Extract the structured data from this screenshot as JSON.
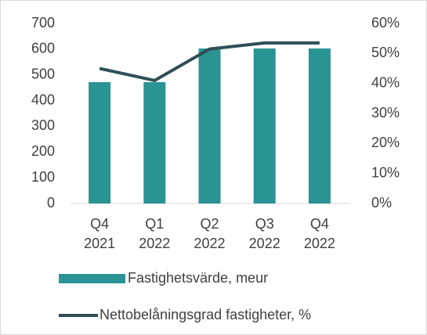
{
  "chart_data": {
    "type": "bar",
    "categories": [
      [
        "Q4",
        "2021"
      ],
      [
        "Q1",
        "2022"
      ],
      [
        "Q2",
        "2022"
      ],
      [
        "Q3",
        "2022"
      ],
      [
        "Q4",
        "2022"
      ]
    ],
    "series": [
      {
        "name": "Fastighetsvärde, meur",
        "type": "bar",
        "color": "#2a9393",
        "values": [
          472,
          472,
          603,
          603,
          603
        ]
      },
      {
        "name": "Nettobelåningsgrad fastigheter, %",
        "type": "line",
        "axis": "y2",
        "color": "#2f4f56",
        "values": [
          45,
          41,
          51.5,
          53.5,
          53.5
        ]
      }
    ],
    "ylim": [
      0,
      700
    ],
    "yticks": [
      0,
      100,
      200,
      300,
      400,
      500,
      600,
      700
    ],
    "y2lim": [
      0,
      60
    ],
    "y2ticks": [
      {
        "value": 0,
        "label": "0%"
      },
      {
        "value": 10,
        "label": "10%"
      },
      {
        "value": 20,
        "label": "20%"
      },
      {
        "value": 30,
        "label": "30%"
      },
      {
        "value": 40,
        "label": "40%"
      },
      {
        "value": 50,
        "label": "50%"
      },
      {
        "value": 60,
        "label": "60%"
      }
    ],
    "legend": "bottom"
  }
}
